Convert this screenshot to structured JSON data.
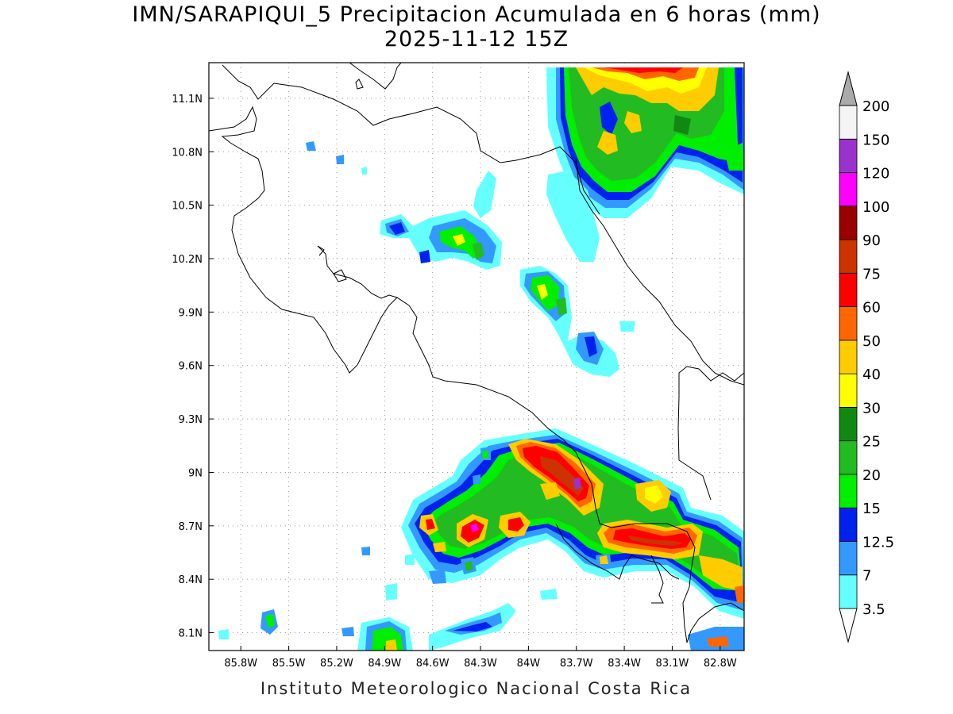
{
  "header": {
    "title": "IMN/SARAPIQUI_5 Precipitacion Acumulada en 6 horas (mm)",
    "datetime": "2025-11-12 15Z"
  },
  "footer": {
    "credit": "Instituto Meteorologico Nacional Costa Rica"
  },
  "map": {
    "lon_range": [
      -86.0,
      -82.65
    ],
    "lat_range": [
      8.0,
      11.3
    ],
    "lon_ticks": [
      "85.8W",
      "85.5W",
      "85.2W",
      "84.9W",
      "84.6W",
      "84.3W",
      "84W",
      "83.7W",
      "83.4W",
      "83.1W",
      "82.8W"
    ],
    "lat_ticks": [
      "11.1N",
      "10.8N",
      "10.5N",
      "10.2N",
      "9.9N",
      "9.6N",
      "9.3N",
      "9N",
      "8.7N",
      "8.4N",
      "8.1N"
    ],
    "grid": "dotted"
  },
  "colorbar": {
    "unit": "mm",
    "levels": [
      {
        "label": "3.5",
        "color": "#66ffff"
      },
      {
        "label": "7",
        "color": "#3399ff"
      },
      {
        "label": "12.5",
        "color": "#0022ee"
      },
      {
        "label": "15",
        "color": "#00ee00"
      },
      {
        "label": "20",
        "color": "#22bb22"
      },
      {
        "label": "25",
        "color": "#118811"
      },
      {
        "label": "30",
        "color": "#ffff00"
      },
      {
        "label": "40",
        "color": "#ffcc00"
      },
      {
        "label": "50",
        "color": "#ff6600"
      },
      {
        "label": "60",
        "color": "#ff0000"
      },
      {
        "label": "75",
        "color": "#cc3300"
      },
      {
        "label": "90",
        "color": "#990000"
      },
      {
        "label": "100",
        "color": "#ff00ff"
      },
      {
        "label": "120",
        "color": "#9933cc"
      },
      {
        "label": "150",
        "color": "#f4f4f4"
      },
      {
        "label": "200",
        "color": "#aaaaaa"
      }
    ]
  }
}
